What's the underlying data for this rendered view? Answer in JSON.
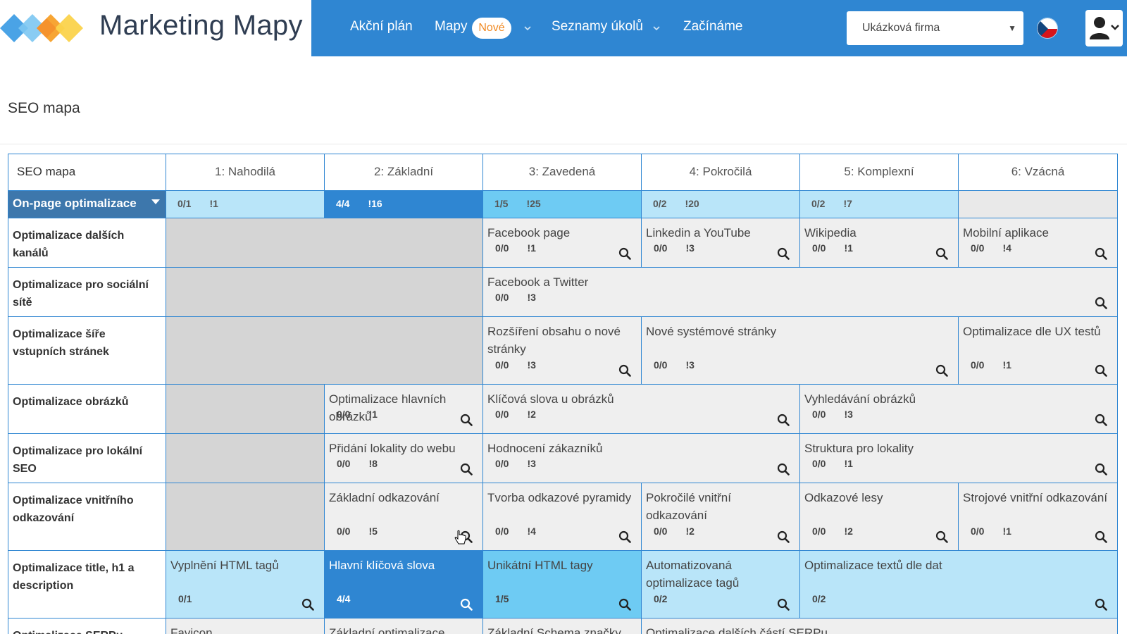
{
  "brand": {
    "name": "Marketing Mapy"
  },
  "nav": {
    "items": [
      {
        "label": "Akční plán"
      },
      {
        "label": "Mapy",
        "badge": "Nové"
      },
      {
        "label": "Seznamy úkolů"
      },
      {
        "label": "Začínáme"
      }
    ],
    "company_select": "Ukázková firma",
    "language_flag": "cz-flag-icon",
    "user_icon": "user-icon"
  },
  "page": {
    "title": "SEO mapa"
  },
  "grid": {
    "corner": "SEO mapa",
    "levels": [
      "1: Nahodilá",
      "2: Základní",
      "3: Zavedená",
      "4: Pokročilá",
      "5: Komplexní",
      "6: Vzácná"
    ],
    "category": {
      "label": "On-page optimalizace",
      "summaries": [
        {
          "done": "0/1",
          "count": "!1"
        },
        {
          "done": "4/4",
          "count": "!16"
        },
        {
          "done": "1/5",
          "count": "!25"
        },
        {
          "done": "0/2",
          "count": "!20"
        },
        {
          "done": "0/2",
          "count": "!7"
        },
        {
          "done": "",
          "count": ""
        }
      ]
    },
    "rows": [
      {
        "label": "Optimalizace dalších kanálů"
      },
      {
        "label": "Optimalizace pro sociální sítě"
      },
      {
        "label": "Optimalizace šíře vstupních stránek"
      },
      {
        "label": "Optimalizace obrázků"
      },
      {
        "label": "Optimalizace pro lokální SEO"
      },
      {
        "label": "Optimalizace vnitřního odkazování"
      },
      {
        "label": "Optimalizace title, h1 a description"
      },
      {
        "label": "Optimalizace SERPu"
      }
    ],
    "tasks": {
      "r1": [
        {
          "title": "Facebook page",
          "done": "0/0",
          "count": "!1"
        },
        {
          "title": "Linkedin a YouTube",
          "done": "0/0",
          "count": "!3"
        },
        {
          "title": "Wikipedia",
          "done": "0/0",
          "count": "!1"
        },
        {
          "title": "Mobilní aplikace",
          "done": "0/0",
          "count": "!4"
        }
      ],
      "r2": [
        {
          "title": "Facebook a Twitter",
          "done": "0/0",
          "count": "!3"
        }
      ],
      "r3": [
        {
          "title": "Rozšíření obsahu o nové stránky",
          "done": "0/0",
          "count": "!3"
        },
        {
          "title": "Nové systémové stránky",
          "done": "0/0",
          "count": "!3"
        },
        {
          "title": "Optimalizace dle UX testů",
          "done": "0/0",
          "count": "!1"
        }
      ],
      "r4": [
        {
          "title": "Optimalizace hlavních obrázků",
          "done": "0/0",
          "count": "!1"
        },
        {
          "title": "Klíčová slova u obrázků",
          "done": "0/0",
          "count": "!2"
        },
        {
          "title": "Vyhledávání obrázků",
          "done": "0/0",
          "count": "!3"
        }
      ],
      "r5": [
        {
          "title": "Přidání lokality do webu",
          "done": "0/0",
          "count": "!8"
        },
        {
          "title": "Hodnocení zákazníků",
          "done": "0/0",
          "count": "!3"
        },
        {
          "title": "Struktura pro lokality",
          "done": "0/0",
          "count": "!1"
        }
      ],
      "r6": [
        {
          "title": "Základní odkazování",
          "done": "0/0",
          "count": "!5"
        },
        {
          "title": "Tvorba odkazové pyramidy",
          "done": "0/0",
          "count": "!4"
        },
        {
          "title": "Pokročilé vnitřní odkazování",
          "done": "0/0",
          "count": "!2"
        },
        {
          "title": "Odkazové lesy",
          "done": "0/0",
          "count": "!2"
        },
        {
          "title": "Strojové vnitřní odkazování",
          "done": "0/0",
          "count": "!1"
        }
      ],
      "r7": [
        {
          "title": "Vyplnění HTML tagů",
          "done": "0/1"
        },
        {
          "title": "Hlavní klíčová slova",
          "done": "4/4"
        },
        {
          "title": "Unikátní HTML tagy",
          "done": "1/5"
        },
        {
          "title": "Automatizovaná optimalizace tagů",
          "done": "0/2"
        },
        {
          "title": "Optimalizace textů dle dat",
          "done": "0/2"
        }
      ],
      "r8": [
        {
          "title": "Favicon"
        },
        {
          "title": "Základní optimalizace SERPu"
        },
        {
          "title": "Základní Schema značky"
        },
        {
          "title": "Optimalizace dalších částí SERPu"
        }
      ]
    }
  }
}
